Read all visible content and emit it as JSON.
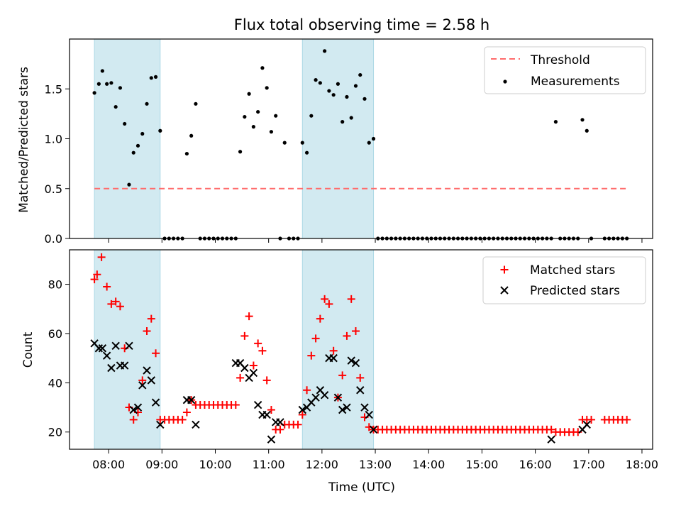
{
  "title": "Flux total observing time = 2.58 h",
  "colors": {
    "threshold": "#ff6b6b",
    "measurement": "#000000",
    "matched": "#ff0000",
    "predicted": "#000000",
    "shade": "#add8e6"
  },
  "chart_data": [
    {
      "type": "scatter",
      "ylabel": "Matched/Predicted stars",
      "ylim": [
        0,
        2.0
      ],
      "yticks": [
        0.0,
        0.5,
        1.0,
        1.5
      ],
      "xlim": [
        "07:16",
        "18:12"
      ],
      "shaded_intervals": [
        [
          "07:44",
          "08:58"
        ],
        [
          "11:38",
          "12:58"
        ]
      ],
      "legend_position": "upper right",
      "legend": [
        "Threshold",
        "Measurements"
      ],
      "threshold": {
        "name": "Threshold",
        "value": 0.5,
        "x_range": [
          "07:44",
          "17:44"
        ]
      },
      "series": [
        {
          "name": "Measurements",
          "x": [
            "07:44",
            "07:49",
            "07:53",
            "07:58",
            "08:03",
            "08:08",
            "08:13",
            "08:18",
            "08:23",
            "08:28",
            "08:33",
            "08:38",
            "08:43",
            "08:48",
            "08:53",
            "08:58",
            "09:03",
            "09:08",
            "09:13",
            "09:18",
            "09:23",
            "09:28",
            "09:33",
            "09:38",
            "09:43",
            "09:48",
            "09:53",
            "09:58",
            "10:03",
            "10:08",
            "10:13",
            "10:18",
            "10:23",
            "10:28",
            "10:33",
            "10:38",
            "10:43",
            "10:48",
            "10:53",
            "10:58",
            "11:03",
            "11:08",
            "11:13",
            "11:18",
            "11:23",
            "11:28",
            "11:33",
            "11:38",
            "11:43",
            "11:48",
            "11:53",
            "11:58",
            "12:03",
            "12:08",
            "12:13",
            "12:18",
            "12:23",
            "12:28",
            "12:33",
            "12:38",
            "12:43",
            "12:48",
            "12:53",
            "12:58",
            "13:03",
            "13:08",
            "13:13",
            "13:18",
            "13:23",
            "13:28",
            "13:33",
            "13:38",
            "13:43",
            "13:48",
            "13:53",
            "13:58",
            "14:03",
            "14:08",
            "14:13",
            "14:18",
            "14:23",
            "14:28",
            "14:33",
            "14:38",
            "14:43",
            "14:48",
            "14:53",
            "14:58",
            "15:03",
            "15:08",
            "15:13",
            "15:18",
            "15:23",
            "15:28",
            "15:33",
            "15:38",
            "15:43",
            "15:48",
            "15:53",
            "15:58",
            "16:03",
            "16:08",
            "16:13",
            "16:18",
            "16:23",
            "16:28",
            "16:33",
            "16:38",
            "16:43",
            "16:48",
            "16:53",
            "16:58",
            "17:03",
            "17:18",
            "17:23",
            "17:28",
            "17:33",
            "17:38",
            "17:43"
          ],
          "y": [
            1.46,
            1.55,
            1.68,
            1.55,
            1.56,
            1.32,
            1.51,
            1.15,
            0.54,
            0.86,
            0.93,
            1.05,
            1.35,
            1.61,
            1.62,
            1.08,
            0,
            0,
            0,
            0,
            0,
            0.85,
            1.03,
            1.35,
            0,
            0,
            0,
            0,
            0,
            0,
            0,
            0,
            0,
            0.87,
            1.22,
            1.45,
            1.12,
            1.27,
            1.71,
            1.51,
            1.07,
            1.23,
            0,
            0.96,
            0,
            0,
            0,
            0.96,
            0.86,
            1.23,
            1.59,
            1.56,
            1.88,
            1.48,
            1.44,
            1.55,
            1.17,
            1.42,
            1.21,
            1.53,
            1.64,
            1.4,
            0.96,
            1.0,
            0,
            0,
            0,
            0,
            0,
            0,
            0,
            0,
            0,
            0,
            0,
            0,
            0,
            0,
            0,
            0,
            0,
            0,
            0,
            0,
            0,
            0,
            0,
            0,
            0,
            0,
            0,
            0,
            0,
            0,
            0,
            0,
            0,
            0,
            0,
            0,
            0,
            0,
            0,
            0,
            1.17,
            0,
            0,
            0,
            0,
            0,
            1.19,
            1.08,
            0,
            0,
            0,
            0,
            0,
            0,
            0
          ]
        }
      ]
    },
    {
      "type": "scatter",
      "xlabel": "Time (UTC)",
      "ylabel": "Count",
      "ylim": [
        13,
        94
      ],
      "yticks": [
        20,
        40,
        60,
        80
      ],
      "xlim": [
        "07:16",
        "18:12"
      ],
      "xticks": [
        "08:00",
        "09:00",
        "10:00",
        "11:00",
        "12:00",
        "13:00",
        "14:00",
        "15:00",
        "16:00",
        "17:00",
        "18:00"
      ],
      "shaded_intervals": [
        [
          "07:44",
          "08:58"
        ],
        [
          "11:38",
          "12:58"
        ]
      ],
      "legend_position": "upper right",
      "legend": [
        "Matched stars",
        "Predicted stars"
      ],
      "series": [
        {
          "name": "Matched stars",
          "x": [
            "07:44",
            "07:47",
            "07:52",
            "07:58",
            "08:03",
            "08:08",
            "08:13",
            "08:18",
            "08:23",
            "08:28",
            "08:33",
            "08:38",
            "08:43",
            "08:48",
            "08:53",
            "08:58",
            "09:03",
            "09:08",
            "09:13",
            "09:18",
            "09:23",
            "09:28",
            "09:33",
            "09:38",
            "09:43",
            "09:48",
            "09:53",
            "09:58",
            "10:03",
            "10:08",
            "10:13",
            "10:18",
            "10:23",
            "10:28",
            "10:33",
            "10:38",
            "10:43",
            "10:48",
            "10:53",
            "10:58",
            "11:03",
            "11:08",
            "11:13",
            "11:18",
            "11:23",
            "11:28",
            "11:33",
            "11:38",
            "11:43",
            "11:48",
            "11:53",
            "11:58",
            "12:03",
            "12:08",
            "12:13",
            "12:18",
            "12:23",
            "12:28",
            "12:33",
            "12:38",
            "12:43",
            "12:48",
            "12:53",
            "12:58",
            "13:03",
            "13:08",
            "13:13",
            "13:18",
            "13:23",
            "13:28",
            "13:33",
            "13:38",
            "13:43",
            "13:48",
            "13:53",
            "13:58",
            "14:03",
            "14:08",
            "14:13",
            "14:18",
            "14:23",
            "14:28",
            "14:33",
            "14:38",
            "14:43",
            "14:48",
            "14:53",
            "14:58",
            "15:03",
            "15:08",
            "15:13",
            "15:18",
            "15:23",
            "15:28",
            "15:33",
            "15:38",
            "15:43",
            "15:48",
            "15:53",
            "15:58",
            "16:03",
            "16:08",
            "16:13",
            "16:18",
            "16:23",
            "16:28",
            "16:33",
            "16:38",
            "16:43",
            "16:48",
            "16:53",
            "16:58",
            "17:03",
            "17:18",
            "17:23",
            "17:28",
            "17:33",
            "17:38",
            "17:43"
          ],
          "y": [
            82,
            84,
            91,
            79,
            72,
            73,
            71,
            54,
            30,
            25,
            28,
            41,
            61,
            66,
            52,
            25,
            25,
            25,
            25,
            25,
            25,
            28,
            33,
            31,
            31,
            31,
            31,
            31,
            31,
            31,
            31,
            31,
            31,
            42,
            59,
            67,
            47,
            56,
            53,
            41,
            29,
            21,
            21,
            23,
            23,
            23,
            23,
            27,
            37,
            51,
            58,
            66,
            74,
            72,
            53,
            34,
            43,
            59,
            74,
            61,
            42,
            26,
            22,
            21,
            21,
            21,
            21,
            21,
            21,
            21,
            21,
            21,
            21,
            21,
            21,
            21,
            21,
            21,
            21,
            21,
            21,
            21,
            21,
            21,
            21,
            21,
            21,
            21,
            21,
            21,
            21,
            21,
            21,
            21,
            21,
            21,
            21,
            21,
            21,
            21,
            21,
            21,
            21,
            21,
            20,
            20,
            20,
            20,
            20,
            20,
            25,
            25,
            25,
            25,
            25,
            25,
            25,
            25,
            25
          ]
        },
        {
          "name": "Predicted stars",
          "x": [
            "07:44",
            "07:49",
            "07:53",
            "07:58",
            "08:03",
            "08:08",
            "08:13",
            "08:18",
            "08:23",
            "08:28",
            "08:33",
            "08:38",
            "08:43",
            "08:48",
            "08:53",
            "08:58",
            "09:28",
            "09:33",
            "09:38",
            "10:23",
            "10:28",
            "10:33",
            "10:38",
            "10:43",
            "10:48",
            "10:53",
            "10:58",
            "11:03",
            "11:08",
            "11:13",
            "11:38",
            "11:43",
            "11:48",
            "11:53",
            "11:58",
            "12:03",
            "12:08",
            "12:13",
            "12:18",
            "12:23",
            "12:28",
            "12:33",
            "12:38",
            "12:43",
            "12:48",
            "12:53",
            "12:58",
            "16:18",
            "16:53",
            "16:58"
          ],
          "y": [
            56,
            54,
            54,
            51,
            46,
            55,
            47,
            47,
            55,
            29,
            30,
            39,
            45,
            41,
            32,
            23,
            33,
            33,
            23,
            48,
            48,
            46,
            42,
            44,
            31,
            27,
            27,
            17,
            24,
            24,
            29,
            30,
            32,
            34,
            37,
            35,
            50,
            50,
            34,
            29,
            30,
            49,
            48,
            37,
            30,
            27,
            21,
            17,
            21,
            23
          ]
        }
      ]
    }
  ]
}
